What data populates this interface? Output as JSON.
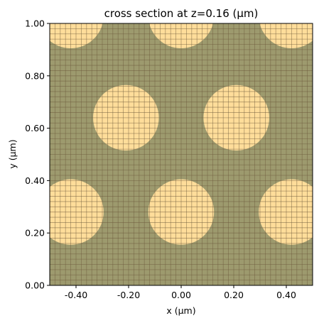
{
  "chart_data": {
    "type": "scatter",
    "title": "cross section at z=0.16 (μm)",
    "xlabel": "x (μm)",
    "ylabel": "y (μm)",
    "xlim": [
      -0.5,
      0.5
    ],
    "ylim": [
      0.0,
      1.0
    ],
    "xticks": [
      -0.4,
      -0.2,
      0.0,
      0.2,
      0.4
    ],
    "xtick_labels": [
      "-0.40",
      "-0.20",
      "0.00",
      "0.20",
      "0.40"
    ],
    "yticks": [
      0.0,
      0.2,
      0.4,
      0.6,
      0.8,
      1.0
    ],
    "ytick_labels": [
      "0.00",
      "0.20",
      "0.40",
      "0.60",
      "0.80",
      "1.00"
    ],
    "background_color": "#9d9a6e",
    "circle_color": "#ffdd9a",
    "grid_line_color": "#6b5a3d",
    "circle_radius": 0.125,
    "grid_spacing_x": 0.02,
    "grid_spacing_y": 0.02,
    "circles": [
      {
        "x": -0.42,
        "y": 1.03
      },
      {
        "x": 0.0,
        "y": 1.03
      },
      {
        "x": 0.42,
        "y": 1.03
      },
      {
        "x": -0.21,
        "y": 0.64
      },
      {
        "x": 0.21,
        "y": 0.64
      },
      {
        "x": -0.42,
        "y": 0.28
      },
      {
        "x": 0.0,
        "y": 0.28
      },
      {
        "x": 0.42,
        "y": 0.28
      }
    ],
    "grid": true
  }
}
